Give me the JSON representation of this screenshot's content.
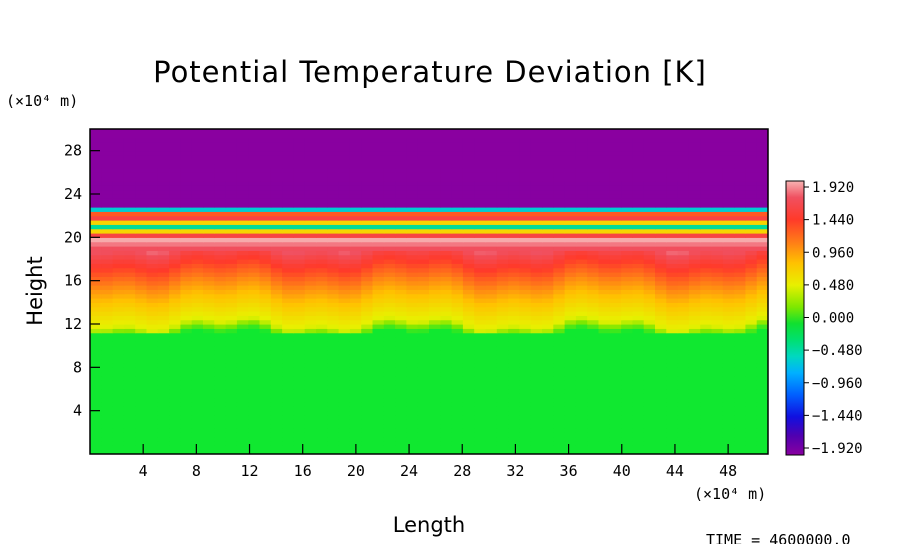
{
  "chart_data": {
    "type": "heatmap",
    "title": "Potential Temperature Deviation [K]",
    "xlabel": "Length",
    "ylabel": "Height",
    "x_unit": "(×10⁴ m)",
    "y_unit": "(×10⁴ m)",
    "xlim": [
      0,
      51
    ],
    "ylim": [
      0,
      30
    ],
    "x_ticks": [
      4,
      8,
      12,
      16,
      20,
      24,
      28,
      32,
      36,
      40,
      44,
      48
    ],
    "y_ticks": [
      4,
      8,
      12,
      16,
      20,
      24,
      28
    ],
    "colorbar": {
      "min": -1.92,
      "max": 1.92,
      "labels": [
        "1.920",
        "1.440",
        "0.960",
        "0.480",
        "0.000",
        "−0.480",
        "−0.960",
        "−1.440",
        "−1.920"
      ]
    },
    "profile": [
      {
        "height": 0,
        "value": 0.0
      },
      {
        "height": 11,
        "value": 0.0
      },
      {
        "height": 12,
        "value": 0.45
      },
      {
        "height": 14,
        "value": 0.7
      },
      {
        "height": 16,
        "value": 0.95
      },
      {
        "height": 18,
        "value": 1.4
      },
      {
        "height": 19.8,
        "value": 1.9
      },
      {
        "height": 20,
        "value": 1.9
      },
      {
        "height": 21,
        "value": -0.2
      },
      {
        "height": 22,
        "value": 1.9
      },
      {
        "height": 23,
        "value": -1.9
      },
      {
        "height": 30,
        "value": -1.92
      }
    ],
    "time_label": "TIME = 4600000.0"
  }
}
